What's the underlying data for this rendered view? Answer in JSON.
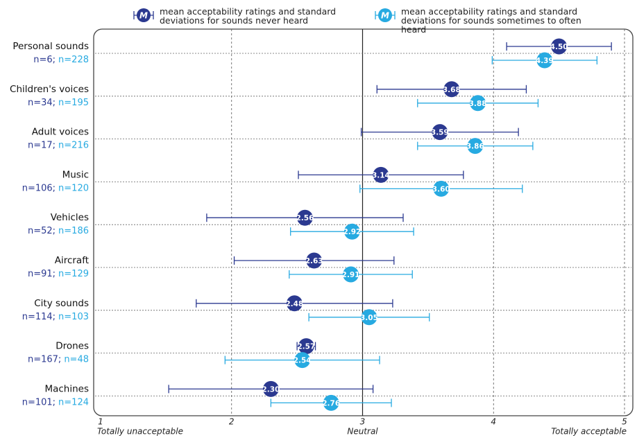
{
  "chart_data": {
    "type": "dot-errorbar",
    "categories": [
      "Personal sounds",
      "Children's voices",
      "Adult voices",
      "Music",
      "Vehicles",
      "Aircraft",
      "City sounds",
      "Drones",
      "Machines"
    ],
    "legend_symbol": "M",
    "series": [
      {
        "name": "mean acceptability ratings and standard deviations for sounds never heard",
        "color": "#2b3990",
        "values": [
          4.5,
          3.68,
          3.59,
          3.14,
          2.56,
          2.63,
          2.48,
          2.57,
          2.3
        ],
        "value_labels": [
          "4.50",
          "3.68",
          "3.59",
          "3.14",
          "2.56",
          "2.63",
          "2.48",
          "2.57",
          "2.30"
        ],
        "sd": [
          0.4,
          0.57,
          0.6,
          0.63,
          0.75,
          0.61,
          0.75,
          0.07,
          0.78
        ],
        "n_labels": [
          "n=6;",
          "n=34;",
          "n=17;",
          "n=106;",
          "n=52;",
          "n=91;",
          "n=114;",
          "n=167;",
          "n=101;"
        ]
      },
      {
        "name": "mean acceptability ratings and standard deviations for sounds sometimes to often heard",
        "color": "#27aae1",
        "values": [
          4.39,
          3.88,
          3.86,
          3.6,
          2.92,
          2.91,
          3.05,
          2.54,
          2.76
        ],
        "value_labels": [
          "4.39",
          "3.88",
          "3.86",
          "3.60",
          "2.92",
          "2.91",
          "3.05",
          "2.54",
          "2.76"
        ],
        "sd": [
          0.4,
          0.46,
          0.44,
          0.62,
          0.47,
          0.47,
          0.46,
          0.59,
          0.46
        ],
        "n_labels": [
          "n=228",
          "n=195",
          "n=216",
          "n=120",
          "n=186",
          "n=129",
          "n=103",
          "n=48",
          "n=124"
        ]
      }
    ],
    "xlim": [
      1,
      5
    ],
    "xticks": [
      1,
      2,
      3,
      4,
      5
    ],
    "xtick_notes": [
      {
        "value": 1,
        "label": "Totally unacceptable"
      },
      {
        "value": 3,
        "label": "Neutral"
      },
      {
        "value": 5,
        "label": "Totally acceptable"
      }
    ],
    "neutral": 3,
    "grid": true
  }
}
